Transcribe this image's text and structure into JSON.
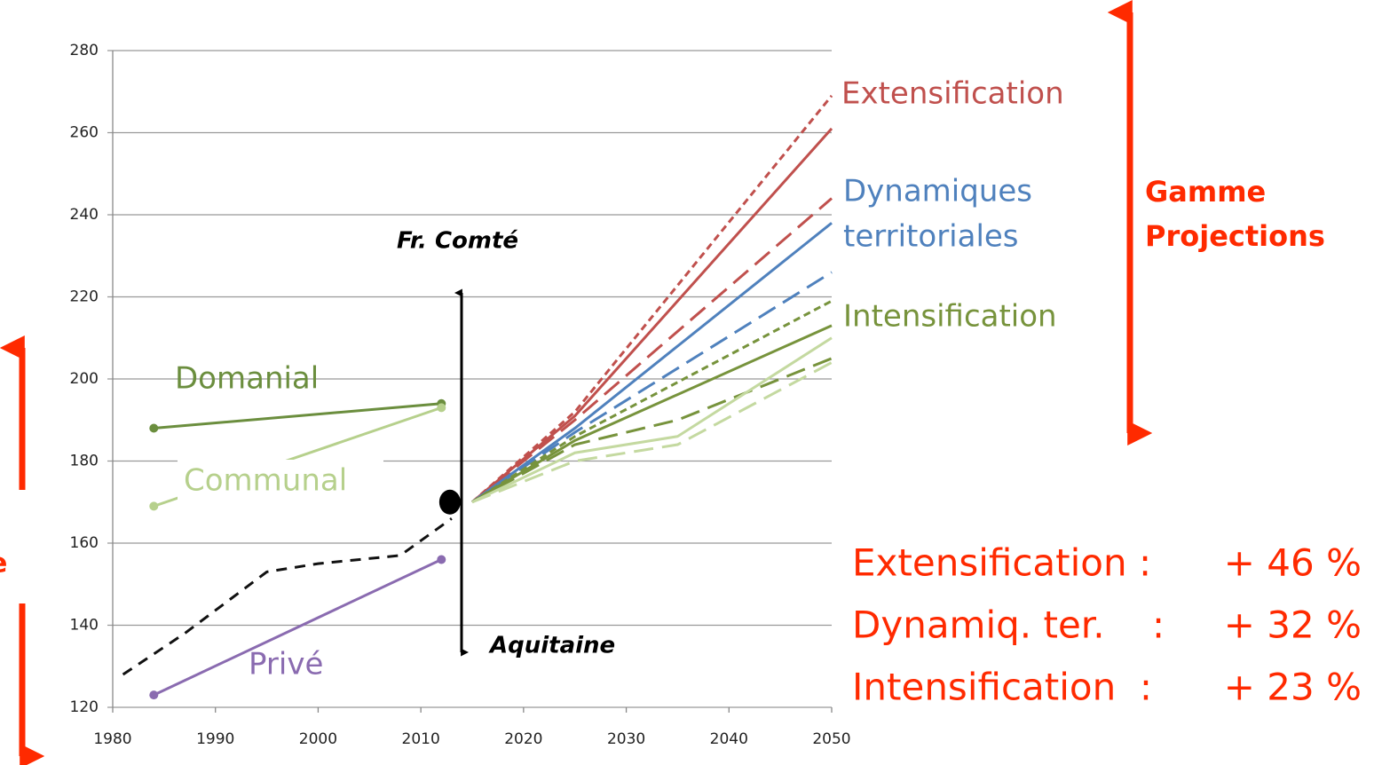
{
  "chart_data": {
    "type": "line",
    "xlim": [
      1980,
      2050
    ],
    "xticks": [
      1980,
      1990,
      2000,
      2010,
      2020,
      2030,
      2040,
      2050
    ],
    "ylim": [
      120,
      280
    ],
    "yticks": [
      120,
      140,
      160,
      180,
      200,
      220,
      240,
      260,
      280
    ],
    "grid": true,
    "series": [
      {
        "name": "Domanial",
        "color": "#6b8e3e",
        "dash": "solid",
        "marker": true,
        "x": [
          1984,
          2012
        ],
        "values": [
          188,
          194
        ]
      },
      {
        "name": "Communal",
        "color": "#b6d08c",
        "dash": "solid",
        "marker": true,
        "x": [
          1984,
          2012
        ],
        "values": [
          169,
          193
        ]
      },
      {
        "name": "Privé",
        "color": "#8a6bb0",
        "dash": "solid",
        "marker": true,
        "x": [
          1984,
          2012
        ],
        "values": [
          123,
          156
        ]
      },
      {
        "color": "#111111",
        "dash": "medium",
        "x": [
          1981,
          1987,
          1995,
          2000,
          2008,
          2013
        ],
        "values": [
          128,
          138,
          153,
          155,
          157,
          166
        ]
      },
      {
        "color": "#c0504d",
        "dash": "short",
        "x": [
          2015,
          2025,
          2050
        ],
        "values": [
          170,
          192,
          269
        ]
      },
      {
        "color": "#c0504d",
        "dash": "solid",
        "x": [
          2015,
          2025,
          2050
        ],
        "values": [
          170,
          191,
          261
        ]
      },
      {
        "color": "#c0504d",
        "dash": "long",
        "x": [
          2015,
          2025,
          2050
        ],
        "values": [
          170,
          190,
          244
        ]
      },
      {
        "color": "#4f81bd",
        "dash": "solid",
        "x": [
          2015,
          2025,
          2050
        ],
        "values": [
          170,
          188,
          238
        ]
      },
      {
        "color": "#4f81bd",
        "dash": "long",
        "x": [
          2015,
          2025,
          2050
        ],
        "values": [
          170,
          187,
          226
        ]
      },
      {
        "color": "#77933c",
        "dash": "short",
        "x": [
          2015,
          2025,
          2050
        ],
        "values": [
          170,
          186,
          219
        ]
      },
      {
        "color": "#77933c",
        "dash": "solid",
        "x": [
          2015,
          2025,
          2050
        ],
        "values": [
          170,
          185,
          213
        ]
      },
      {
        "color": "#77933c",
        "dash": "long",
        "x": [
          2015,
          2025,
          2035,
          2050
        ],
        "values": [
          170,
          184,
          190,
          205
        ]
      },
      {
        "color": "#c4d9a0",
        "dash": "solid",
        "x": [
          2015,
          2025,
          2035,
          2050
        ],
        "values": [
          170,
          182,
          186,
          210
        ]
      },
      {
        "color": "#c4d9a0",
        "dash": "long",
        "x": [
          2015,
          2025,
          2035,
          2050
        ],
        "values": [
          170,
          180,
          184,
          204
        ]
      }
    ],
    "point": {
      "x": 2013,
      "value": 170
    },
    "annotations": [
      "Extensification",
      "Dynamiques",
      "territoriales",
      "Intensification",
      "Fr. Comté",
      "Aquitaine",
      "Gamme",
      "Projections",
      "e"
    ],
    "summary": [
      {
        "name": "Extensification :",
        "value": "+ 46 %"
      },
      {
        "name": "Dynamiq. ter.    :",
        "value": "+ 32 %"
      },
      {
        "name": "Intensification  :",
        "value": "+ 23 %"
      }
    ]
  }
}
